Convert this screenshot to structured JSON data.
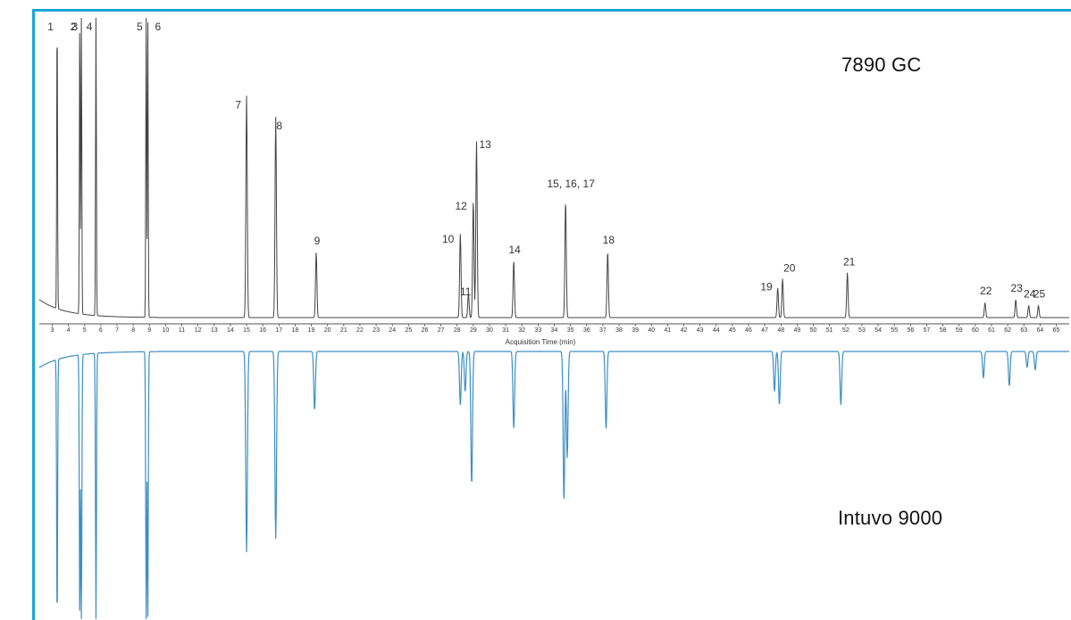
{
  "labels": {
    "top_instrument": "7890 GC",
    "bottom_instrument": "Intuvo 9000",
    "x_axis_title": "Acquisition Time (min)"
  },
  "colors": {
    "frame": "#1aa7d4",
    "trace_top": "#444444",
    "trace_bottom": "#3d8fc4"
  },
  "chart_data": {
    "type": "line",
    "title": "",
    "xlabel": "Acquisition Time (min)",
    "ylabel": "",
    "xlim": [
      2.2,
      65.8
    ],
    "x_ticks": [
      3,
      4,
      5,
      6,
      7,
      8,
      9,
      10,
      11,
      12,
      13,
      14,
      15,
      16,
      17,
      18,
      19,
      20,
      21,
      22,
      23,
      24,
      25,
      26,
      27,
      28,
      29,
      30,
      31,
      32,
      33,
      34,
      35,
      36,
      37,
      38,
      39,
      40,
      41,
      42,
      43,
      44,
      45,
      46,
      47,
      48,
      49,
      50,
      51,
      52,
      53,
      54,
      55,
      56,
      57,
      58,
      59,
      60,
      61,
      62,
      63,
      64,
      65
    ],
    "series": [
      {
        "name": "7890 GC",
        "orientation": "up",
        "peaks": [
          {
            "label": "1",
            "rt": 3.3,
            "height": 1.0
          },
          {
            "label": "2",
            "rt": 4.7,
            "height": 1.0
          },
          {
            "label": "3",
            "rt": 4.8,
            "height": 1.0
          },
          {
            "label": "4",
            "rt": 5.7,
            "height": 1.0
          },
          {
            "label": "5",
            "rt": 8.8,
            "height": 1.0
          },
          {
            "label": "6",
            "rt": 8.9,
            "height": 1.0
          },
          {
            "label": "7",
            "rt": 15.0,
            "height": 0.74
          },
          {
            "label": "8",
            "rt": 16.8,
            "height": 0.67
          },
          {
            "label": "9",
            "rt": 19.3,
            "height": 0.22
          },
          {
            "label": "10",
            "rt": 28.2,
            "height": 0.28
          },
          {
            "label": "11",
            "rt": 28.7,
            "height": 0.08
          },
          {
            "label": "12",
            "rt": 29.0,
            "height": 0.39
          },
          {
            "label": "13",
            "rt": 29.2,
            "height": 0.59
          },
          {
            "label": "14",
            "rt": 31.5,
            "height": 0.19
          },
          {
            "label": "15, 16, 17",
            "rt": 34.7,
            "height": 0.39
          },
          {
            "label": "18",
            "rt": 37.3,
            "height": 0.22
          },
          {
            "label": "19",
            "rt": 47.8,
            "height": 0.1
          },
          {
            "label": "20",
            "rt": 48.1,
            "height": 0.13
          },
          {
            "label": "21",
            "rt": 52.1,
            "height": 0.15
          },
          {
            "label": "22",
            "rt": 60.6,
            "height": 0.05
          },
          {
            "label": "23",
            "rt": 62.5,
            "height": 0.06
          },
          {
            "label": "24",
            "rt": 63.3,
            "height": 0.04
          },
          {
            "label": "25",
            "rt": 63.9,
            "height": 0.04
          }
        ]
      },
      {
        "name": "Intuvo 9000",
        "orientation": "down",
        "peaks": [
          {
            "rt": 3.3,
            "height": 1.0
          },
          {
            "rt": 4.7,
            "height": 1.0
          },
          {
            "rt": 4.8,
            "height": 1.0
          },
          {
            "rt": 5.7,
            "height": 1.0
          },
          {
            "rt": 8.8,
            "height": 1.0
          },
          {
            "rt": 8.9,
            "height": 1.0
          },
          {
            "rt": 15.0,
            "height": 0.75
          },
          {
            "rt": 16.8,
            "height": 0.7
          },
          {
            "rt": 19.2,
            "height": 0.22
          },
          {
            "rt": 28.2,
            "height": 0.2
          },
          {
            "rt": 28.5,
            "height": 0.15
          },
          {
            "rt": 28.9,
            "height": 0.5
          },
          {
            "rt": 31.5,
            "height": 0.29
          },
          {
            "rt": 34.6,
            "height": 0.56
          },
          {
            "rt": 34.8,
            "height": 0.4
          },
          {
            "rt": 37.2,
            "height": 0.29
          },
          {
            "rt": 47.6,
            "height": 0.15
          },
          {
            "rt": 47.9,
            "height": 0.2
          },
          {
            "rt": 51.7,
            "height": 0.2
          },
          {
            "rt": 60.5,
            "height": 0.1
          },
          {
            "rt": 62.1,
            "height": 0.13
          },
          {
            "rt": 63.2,
            "height": 0.06
          },
          {
            "rt": 63.7,
            "height": 0.07
          }
        ]
      }
    ]
  }
}
